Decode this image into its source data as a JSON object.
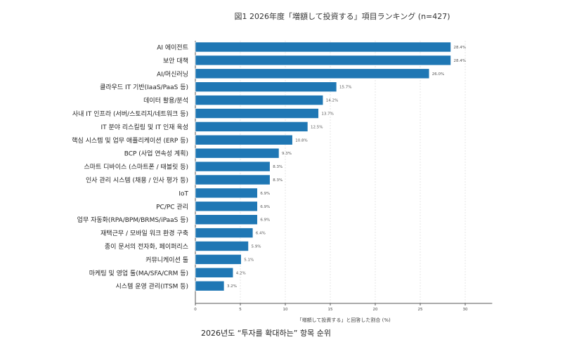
{
  "chart_data": {
    "type": "bar",
    "orientation": "horizontal",
    "title": "図1 2026年度「増額して投資する」項目ランキング (n=427)",
    "xlabel": "「増額して投資する」と回答した割合 (%)",
    "ylabel": "",
    "xlim": [
      0,
      33
    ],
    "xticks": [
      0,
      5,
      10,
      15,
      20,
      25,
      30
    ],
    "grid": true,
    "color": "#1f77b4",
    "categories": [
      "AI 에이전트",
      "보안 대책",
      "AI/머신러닝",
      "클라우드 IT 기반(IaaS/PaaS 등)",
      "데이터 활용/분석",
      "사내 IT 인프라 (서버/스토리지/네트워크 등)",
      "IT 분야 리스킬링 및 IT 인재 육성",
      "핵심 시스템 및 업무 애플리케이션 (ERP 등)",
      "BCP (사업 연속성 계획)",
      "스마트 디바이스 (스마트폰 / 태블릿 등)",
      "인사 관리 시스템 (채용 / 인사 평가 등)",
      "IoT",
      "PC/PC 관리",
      "업무 자동화(RPA/BPM/BRMS/iPaaS 등)",
      "재택근무 / 모바일 워크 환경 구축",
      "종이 문서의 전자화, 페이퍼리스",
      "커뮤니케이션 툴",
      "마케팅 및 영업 툴(MA/SFA/CRM 등)",
      "시스템 운영 관리(ITSM 등)"
    ],
    "values": [
      28.4,
      28.4,
      26.0,
      15.7,
      14.2,
      13.7,
      12.5,
      10.8,
      9.3,
      8.3,
      8.3,
      6.9,
      6.9,
      6.9,
      6.4,
      5.9,
      5.1,
      4.2,
      3.2
    ],
    "value_labels": [
      "28.4%",
      "28.4%",
      "26.0%",
      "15.7%",
      "14.2%",
      "13.7%",
      "12.5%",
      "10.8%",
      "9.3%",
      "8.3%",
      "8.3%",
      "6.9%",
      "6.9%",
      "6.9%",
      "6.4%",
      "5.9%",
      "5.1%",
      "4.2%",
      "3.2%"
    ]
  },
  "caption": "2026년도 “투자를 확대하는” 항목 순위"
}
